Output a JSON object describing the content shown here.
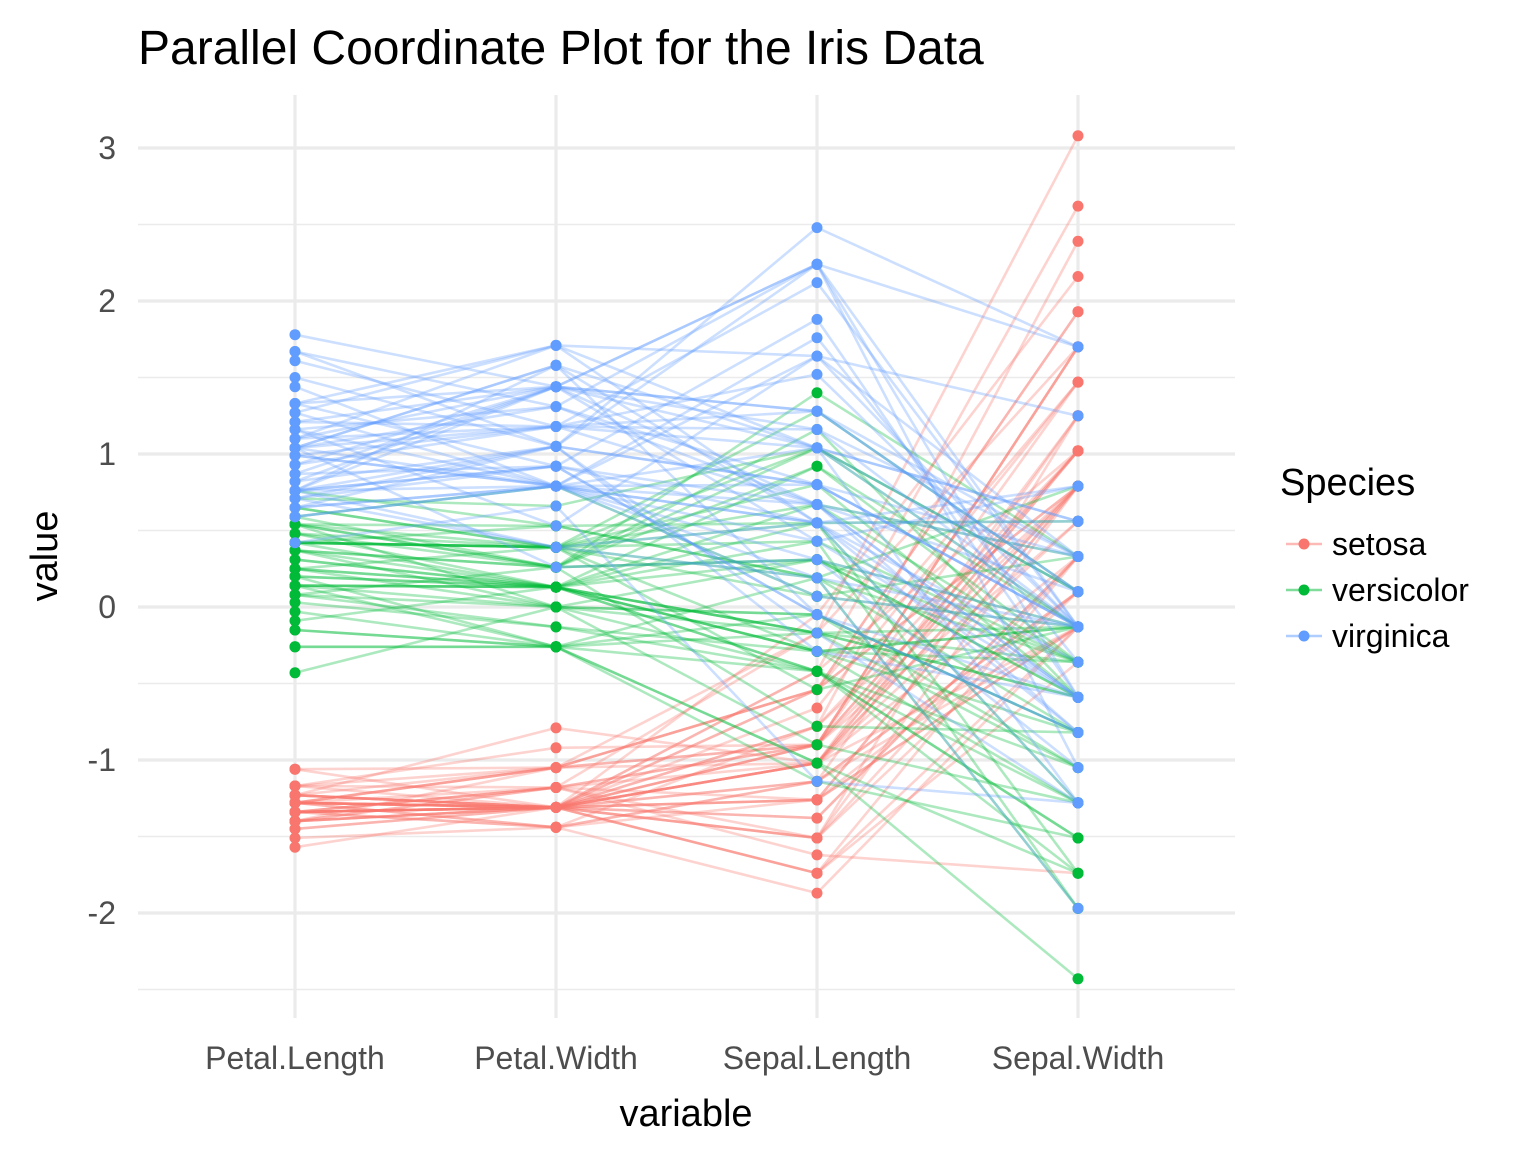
{
  "chart_data": {
    "type": "line",
    "title": "Parallel Coordinate Plot for the Iris Data",
    "xlabel": "variable",
    "ylabel": "value",
    "categories": [
      "Petal.Length",
      "Petal.Width",
      "Sepal.Length",
      "Sepal.Width"
    ],
    "y_ticks": [
      "-2",
      "-1",
      "0",
      "1",
      "2",
      "3"
    ],
    "ylim": [
      -2.6,
      3.35
    ],
    "grid": true,
    "legend": {
      "title": "Species",
      "placement": "right"
    },
    "colors": {
      "setosa": "#F8766D",
      "versicolor": "#00BA38",
      "virginica": "#619CFF"
    },
    "series": [
      {
        "name": "setosa",
        "lines": [
          [
            -1.34,
            -1.31,
            -0.9,
            1.02
          ],
          [
            -1.34,
            -1.31,
            -1.14,
            -0.13
          ],
          [
            -1.4,
            -1.31,
            -1.38,
            0.33
          ],
          [
            -1.28,
            -1.31,
            -1.51,
            0.1
          ],
          [
            -1.34,
            -1.31,
            -1.02,
            1.25
          ],
          [
            -1.17,
            -1.05,
            -0.54,
            1.93
          ],
          [
            -1.34,
            -1.18,
            -1.51,
            0.79
          ],
          [
            -1.28,
            -1.31,
            -1.02,
            0.79
          ],
          [
            -1.34,
            -1.31,
            -1.74,
            -0.36
          ],
          [
            -1.28,
            -1.44,
            -1.14,
            0.1
          ],
          [
            -1.28,
            -1.31,
            -0.54,
            1.47
          ],
          [
            -1.23,
            -1.31,
            -1.26,
            0.79
          ],
          [
            -1.34,
            -1.44,
            -1.26,
            -0.13
          ],
          [
            -1.51,
            -1.44,
            -1.87,
            -0.13
          ],
          [
            -1.45,
            -1.31,
            -0.05,
            2.16
          ],
          [
            -1.28,
            -1.05,
            -0.17,
            3.08
          ],
          [
            -1.4,
            -1.05,
            -0.54,
            1.93
          ],
          [
            -1.34,
            -1.18,
            -0.9,
            1.02
          ],
          [
            -1.17,
            -1.18,
            -0.17,
            1.7
          ],
          [
            -1.28,
            -1.18,
            -0.9,
            1.7
          ],
          [
            -1.17,
            -1.31,
            -0.54,
            0.79
          ],
          [
            -1.28,
            -1.05,
            -0.9,
            1.47
          ],
          [
            -1.57,
            -1.31,
            -1.51,
            1.25
          ],
          [
            -1.17,
            -0.92,
            -0.9,
            0.56
          ],
          [
            -1.06,
            -1.31,
            -1.26,
            0.79
          ],
          [
            -1.23,
            -1.31,
            -1.02,
            -0.13
          ],
          [
            -1.23,
            -1.05,
            -1.02,
            0.79
          ],
          [
            -1.28,
            -1.31,
            -0.78,
            1.02
          ],
          [
            -1.34,
            -1.31,
            -0.78,
            0.79
          ],
          [
            -1.23,
            -1.31,
            -1.38,
            0.33
          ],
          [
            -1.23,
            -1.31,
            -1.26,
            0.1
          ],
          [
            -1.28,
            -1.05,
            -0.54,
            0.79
          ],
          [
            -1.28,
            -1.44,
            -0.78,
            2.39
          ],
          [
            -1.34,
            -1.31,
            -0.42,
            2.62
          ],
          [
            -1.28,
            -1.31,
            -1.14,
            0.1
          ],
          [
            -1.45,
            -1.31,
            -1.02,
            0.33
          ],
          [
            -1.4,
            -1.31,
            -0.42,
            1.02
          ],
          [
            -1.34,
            -1.44,
            -1.14,
            1.25
          ],
          [
            -1.4,
            -1.31,
            -1.74,
            -0.13
          ],
          [
            -1.28,
            -1.31,
            -0.9,
            0.79
          ],
          [
            -1.4,
            -1.18,
            -1.02,
            1.02
          ],
          [
            -1.4,
            -1.18,
            -1.62,
            -1.74
          ],
          [
            -1.4,
            -1.31,
            -1.74,
            0.33
          ],
          [
            -1.23,
            -0.79,
            -1.02,
            1.02
          ],
          [
            -1.06,
            -1.05,
            -0.9,
            1.7
          ],
          [
            -1.34,
            -1.18,
            -1.26,
            -0.13
          ],
          [
            -1.23,
            -1.31,
            -0.9,
            1.7
          ],
          [
            -1.34,
            -1.31,
            -1.51,
            0.33
          ],
          [
            -1.28,
            -1.31,
            -0.66,
            1.47
          ],
          [
            -1.34,
            -1.31,
            -1.02,
            0.56
          ]
        ]
      },
      {
        "name": "versicolor",
        "lines": [
          [
            0.54,
            0.26,
            1.4,
            0.33
          ],
          [
            0.42,
            0.39,
            0.67,
            0.33
          ],
          [
            0.65,
            0.39,
            1.28,
            0.1
          ],
          [
            0.14,
            0.13,
            -0.42,
            -1.74
          ],
          [
            0.48,
            0.39,
            0.8,
            -0.59
          ],
          [
            0.42,
            0.13,
            -0.17,
            -0.59
          ],
          [
            0.54,
            0.53,
            0.55,
            0.56
          ],
          [
            -0.26,
            -0.26,
            -1.14,
            -1.51
          ],
          [
            0.48,
            0.13,
            0.92,
            -0.36
          ],
          [
            0.08,
            0.26,
            -0.78,
            -0.82
          ],
          [
            -0.15,
            -0.26,
            -1.02,
            -2.43
          ],
          [
            0.25,
            0.39,
            0.07,
            -0.13
          ],
          [
            0.14,
            -0.26,
            0.19,
            -1.97
          ],
          [
            0.54,
            0.26,
            0.31,
            -0.36
          ],
          [
            -0.09,
            0.13,
            -0.29,
            -0.36
          ],
          [
            0.37,
            0.26,
            1.04,
            0.1
          ],
          [
            0.42,
            0.39,
            -0.29,
            -0.13
          ],
          [
            0.2,
            -0.26,
            -0.05,
            -0.82
          ],
          [
            0.42,
            0.39,
            0.43,
            -1.97
          ],
          [
            0.08,
            -0.13,
            -0.29,
            -1.28
          ],
          [
            0.59,
            0.79,
            0.07,
            0.33
          ],
          [
            0.14,
            0.13,
            0.31,
            -0.59
          ],
          [
            0.65,
            0.39,
            0.55,
            -1.28
          ],
          [
            0.54,
            0.0,
            0.31,
            -0.59
          ],
          [
            0.31,
            0.13,
            0.67,
            -0.36
          ],
          [
            0.37,
            0.26,
            0.92,
            -0.13
          ],
          [
            0.59,
            0.26,
            1.16,
            -0.59
          ],
          [
            0.71,
            0.66,
            1.04,
            -0.13
          ],
          [
            0.42,
            0.39,
            0.19,
            -0.36
          ],
          [
            -0.15,
            -0.26,
            -0.17,
            -1.05
          ],
          [
            0.03,
            -0.13,
            -0.42,
            -1.51
          ],
          [
            -0.03,
            -0.26,
            -0.42,
            -1.51
          ],
          [
            0.08,
            0.0,
            -0.05,
            -0.82
          ],
          [
            0.76,
            0.53,
            0.19,
            -0.82
          ],
          [
            0.42,
            0.39,
            -0.54,
            -0.13
          ],
          [
            0.42,
            0.53,
            0.19,
            0.79
          ],
          [
            0.54,
            0.39,
            1.04,
            0.1
          ],
          [
            0.37,
            0.13,
            0.55,
            -1.74
          ],
          [
            0.2,
            0.13,
            -0.29,
            -0.13
          ],
          [
            0.14,
            0.13,
            -0.42,
            -1.28
          ],
          [
            0.37,
            0.0,
            -0.42,
            -1.05
          ],
          [
            0.48,
            0.26,
            0.31,
            -0.13
          ],
          [
            0.14,
            0.0,
            -0.05,
            -1.05
          ],
          [
            -0.26,
            -0.26,
            -1.02,
            -1.74
          ],
          [
            0.25,
            0.13,
            -0.29,
            -0.82
          ],
          [
            0.25,
            0.0,
            -0.17,
            -0.13
          ],
          [
            0.25,
            0.13,
            -0.17,
            -0.36
          ],
          [
            0.31,
            0.13,
            0.43,
            -0.36
          ],
          [
            -0.43,
            0.0,
            -0.9,
            -1.28
          ],
          [
            0.2,
            0.13,
            -0.17,
            -0.59
          ]
        ]
      },
      {
        "name": "virginica",
        "lines": [
          [
            1.27,
            1.71,
            0.55,
            0.56
          ],
          [
            0.76,
            0.92,
            -0.05,
            -0.82
          ],
          [
            1.21,
            1.18,
            1.52,
            -0.13
          ],
          [
            1.04,
            0.79,
            0.55,
            -0.36
          ],
          [
            1.16,
            1.31,
            0.8,
            -0.13
          ],
          [
            1.61,
            1.18,
            2.12,
            -0.13
          ],
          [
            0.42,
            0.66,
            -1.14,
            -1.28
          ],
          [
            1.44,
            0.79,
            1.76,
            -0.36
          ],
          [
            1.16,
            0.79,
            1.04,
            -1.28
          ],
          [
            1.33,
            1.71,
            1.64,
            1.25
          ],
          [
            0.76,
            1.05,
            0.8,
            0.33
          ],
          [
            0.87,
            0.92,
            0.67,
            -0.82
          ],
          [
            0.99,
            1.18,
            1.16,
            -0.13
          ],
          [
            0.71,
            1.05,
            -0.17,
            -1.28
          ],
          [
            0.76,
            1.58,
            -0.05,
            -0.59
          ],
          [
            0.87,
            1.44,
            0.67,
            0.33
          ],
          [
            0.99,
            0.79,
            0.8,
            -0.13
          ],
          [
            1.67,
            1.31,
            2.24,
            1.7
          ],
          [
            1.78,
            1.44,
            2.24,
            -1.05
          ],
          [
            0.71,
            0.39,
            0.19,
            -1.97
          ],
          [
            1.1,
            1.44,
            1.28,
            0.33
          ],
          [
            0.65,
            1.05,
            -0.29,
            -0.59
          ],
          [
            1.67,
            1.05,
            2.24,
            -0.59
          ],
          [
            0.65,
            0.79,
            0.55,
            -0.82
          ],
          [
            1.1,
            1.18,
            1.04,
            0.56
          ],
          [
            1.27,
            0.79,
            1.64,
            0.33
          ],
          [
            0.59,
            0.79,
            0.43,
            -0.59
          ],
          [
            0.65,
            0.79,
            0.31,
            -0.13
          ],
          [
            1.04,
            1.18,
            0.67,
            -0.59
          ],
          [
            1.16,
            0.53,
            1.64,
            -0.13
          ],
          [
            1.33,
            0.92,
            1.88,
            -0.59
          ],
          [
            1.5,
            1.05,
            2.48,
            1.7
          ],
          [
            1.04,
            1.31,
            0.67,
            -0.59
          ],
          [
            0.76,
            0.39,
            0.55,
            -0.59
          ],
          [
            1.04,
            0.26,
            0.31,
            -1.05
          ],
          [
            1.33,
            1.44,
            2.24,
            -0.13
          ],
          [
            1.04,
            1.58,
            0.55,
            0.79
          ],
          [
            0.99,
            0.79,
            0.67,
            0.1
          ],
          [
            0.59,
            0.79,
            0.19,
            -0.13
          ],
          [
            0.93,
            1.18,
            1.28,
            0.1
          ],
          [
            1.04,
            1.58,
            1.04,
            0.1
          ],
          [
            0.76,
            1.44,
            1.28,
            0.1
          ],
          [
            0.76,
            0.92,
            -0.05,
            -0.82
          ],
          [
            1.21,
            1.44,
            1.16,
            0.33
          ],
          [
            1.1,
            1.71,
            1.04,
            0.56
          ],
          [
            0.82,
            1.44,
            1.04,
            -0.13
          ],
          [
            0.71,
            0.92,
            0.55,
            -1.28
          ],
          [
            0.82,
            1.05,
            0.8,
            -0.13
          ],
          [
            0.93,
            1.44,
            0.43,
            0.79
          ],
          [
            0.76,
            0.79,
            0.07,
            -0.13
          ]
        ]
      }
    ]
  }
}
